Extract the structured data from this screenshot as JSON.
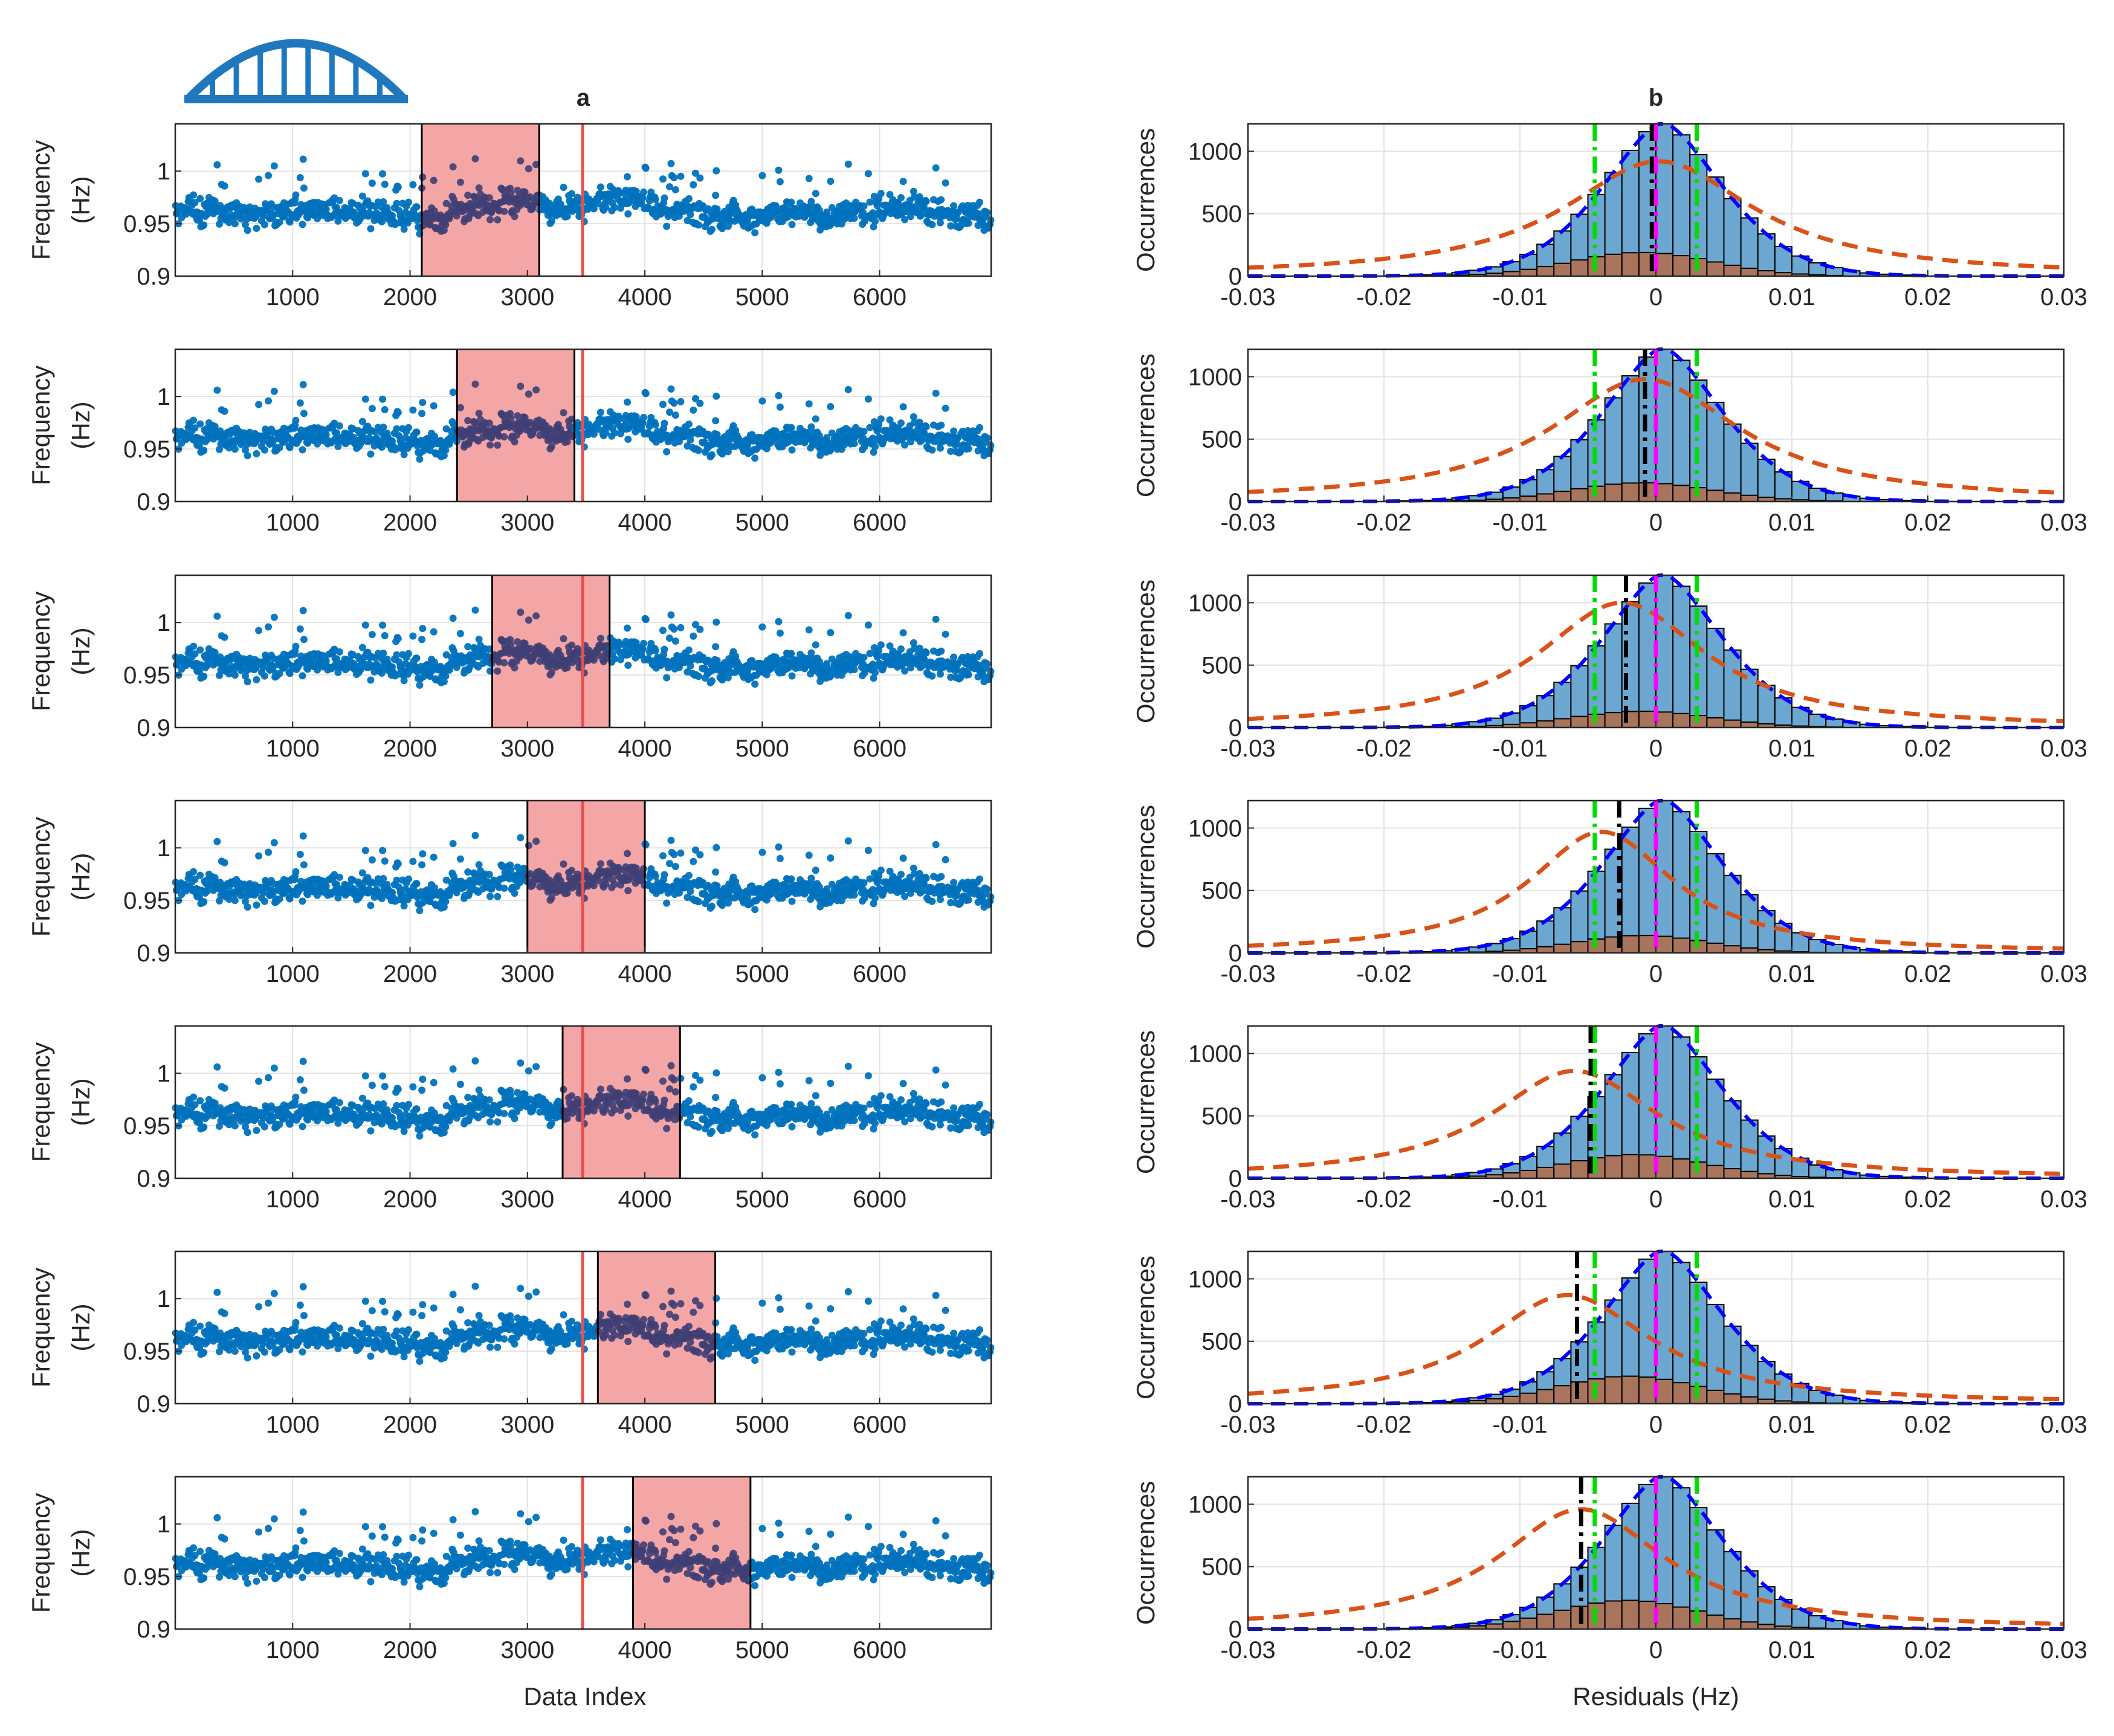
{
  "panel_labels": {
    "a": "a",
    "b": "b"
  },
  "colors": {
    "scatter": "#0072BD",
    "window_fill": "#F4A6A6",
    "window_overlap_points": "#3F3F75",
    "red_line": "#E8504E",
    "hist_fill": "#6BA7D0",
    "hist_damaged": "#A9745C",
    "blue_fit": "#0000FF",
    "orange_fit": "#D95319",
    "green_line": "#00DD00",
    "magenta_line": "#FF00FF",
    "black_line": "#000000",
    "bridge_icon": "#1F78BE"
  },
  "icon": "arch-bridge-icon",
  "chart_data": [
    {
      "type": "scatter",
      "panel": "a",
      "xlabel": "Data Index",
      "ylabel": [
        "Frequency",
        "(Hz)"
      ],
      "xlim": [
        0,
        6950
      ],
      "ylim": [
        0.9,
        1.045
      ],
      "xticks": [
        1000,
        2000,
        3000,
        4000,
        5000,
        6000
      ],
      "yticks": [
        0.9,
        0.95,
        1
      ],
      "ytick_labels": [
        "0.9",
        "0.95",
        "1"
      ],
      "grid": true,
      "red_line_index": 3470,
      "series_mean": 0.96,
      "windows": [
        {
          "start": 2100,
          "end": 3100
        },
        {
          "start": 2400,
          "end": 3400
        },
        {
          "start": 2700,
          "end": 3700
        },
        {
          "start": 3000,
          "end": 4000
        },
        {
          "start": 3300,
          "end": 4300
        },
        {
          "start": 3600,
          "end": 4600
        },
        {
          "start": 3900,
          "end": 4900
        }
      ]
    },
    {
      "type": "bar",
      "panel": "b",
      "xlabel": "Residuals (Hz)",
      "ylabel": "Occurrences",
      "xlim": [
        -0.03,
        0.03
      ],
      "ylim": [
        0,
        1220
      ],
      "xticks": [
        -0.03,
        -0.02,
        -0.01,
        0,
        0.01,
        0.02,
        0.03
      ],
      "xtick_labels": [
        "-0.03",
        "-0.02",
        "-0.01",
        "0",
        "0.01",
        "0.02",
        "0.03"
      ],
      "yticks": [
        0,
        500,
        1000
      ],
      "ytick_labels": [
        "0",
        "500",
        "1000"
      ],
      "grid": true,
      "bin_width": 0.00125,
      "green_lines": [
        -0.0045,
        0.003
      ],
      "magenta_line": 0,
      "hist_peak": 1230,
      "hist_center": 0.0005,
      "hist_sigma": 0.0065,
      "rows": [
        {
          "black_line": -0.0003,
          "orange_peak": 920,
          "orange_center": 0.0002,
          "orange_width": 0.0085,
          "damaged_peak": 190,
          "damaged_center": -0.001,
          "damaged_sigma": 0.0075
        },
        {
          "black_line": -0.0008,
          "orange_peak": 980,
          "orange_center": -0.0008,
          "orange_width": 0.0085,
          "damaged_peak": 150,
          "damaged_center": -0.001,
          "damaged_sigma": 0.0075
        },
        {
          "black_line": -0.0022,
          "orange_peak": 1000,
          "orange_center": -0.0025,
          "orange_width": 0.0075,
          "damaged_peak": 130,
          "damaged_center": -0.001,
          "damaged_sigma": 0.0075
        },
        {
          "black_line": -0.0027,
          "orange_peak": 970,
          "orange_center": -0.004,
          "orange_width": 0.0065,
          "damaged_peak": 140,
          "damaged_center": -0.001,
          "damaged_sigma": 0.007
        },
        {
          "black_line": -0.0048,
          "orange_peak": 860,
          "orange_center": -0.006,
          "orange_width": 0.0075,
          "damaged_peak": 190,
          "damaged_center": -0.0015,
          "damaged_sigma": 0.0075
        },
        {
          "black_line": -0.0058,
          "orange_peak": 870,
          "orange_center": -0.0065,
          "orange_width": 0.0075,
          "damaged_peak": 220,
          "damaged_center": -0.002,
          "damaged_sigma": 0.0075
        },
        {
          "black_line": -0.0055,
          "orange_peak": 960,
          "orange_center": -0.0055,
          "orange_width": 0.0075,
          "damaged_peak": 230,
          "damaged_center": -0.002,
          "damaged_sigma": 0.0075
        }
      ]
    }
  ]
}
